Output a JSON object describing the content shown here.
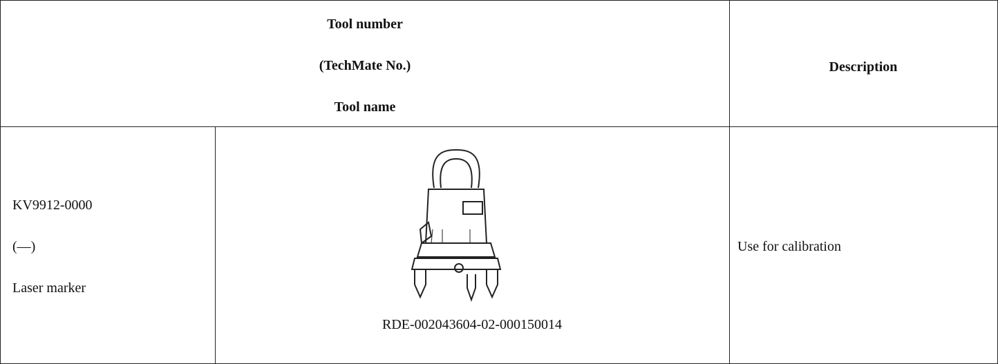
{
  "table": {
    "header": {
      "tool_number": "Tool number",
      "techmate_no": "(TechMate No.)",
      "tool_name": "Tool name",
      "description": "Description"
    },
    "rows": [
      {
        "tool_number": "KV9912-0000",
        "techmate_no": "(—)",
        "tool_name": "Laser marker",
        "image_caption": "RDE-002043604-02-000150014",
        "description": "Use for calibration"
      }
    ]
  }
}
